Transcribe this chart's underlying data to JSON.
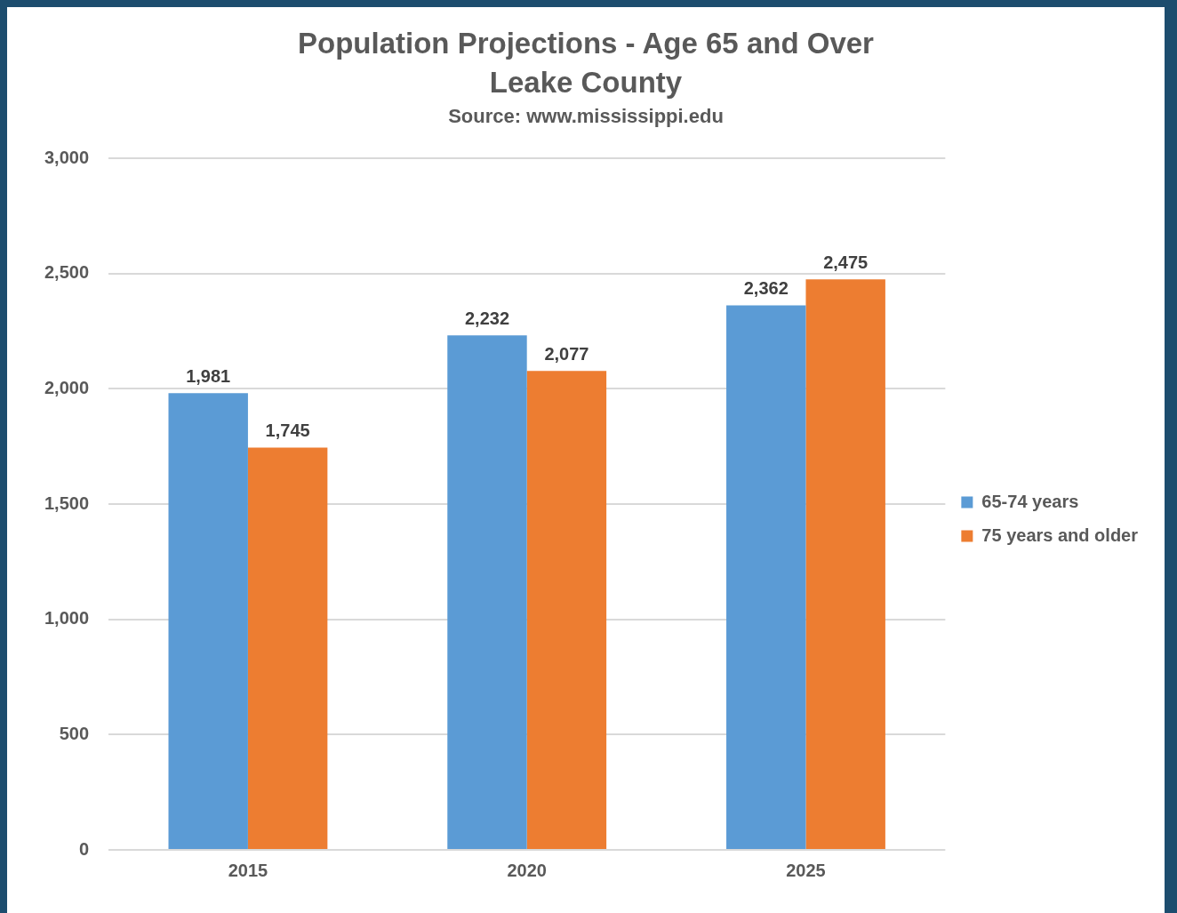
{
  "chart_data": {
    "type": "bar",
    "title": "Population Projections - Age 65 and Over",
    "subtitle": "Leake County",
    "annotations": [
      "Source: www.mississippi.edu"
    ],
    "categories": [
      "2015",
      "2020",
      "2025"
    ],
    "series": [
      {
        "name": "65-74 years",
        "color": "#5b9bd5",
        "values": [
          1981,
          2232,
          2362
        ],
        "value_labels": [
          "1,981",
          "2,232",
          "2,362"
        ]
      },
      {
        "name": "75 years and older",
        "color": "#ed7d31",
        "values": [
          1745,
          2077,
          2475
        ],
        "value_labels": [
          "1,745",
          "2,077",
          "2,475"
        ]
      }
    ],
    "ylim": [
      0,
      3000
    ],
    "yticks": [
      0,
      500,
      {
        "value": 1000,
        "label": "1,000"
      },
      {
        "value": 1500,
        "label": "1,500"
      },
      {
        "value": 2000,
        "label": "2,000"
      },
      {
        "value": 2500,
        "label": "2,500"
      },
      {
        "value": 3000,
        "label": "3,000"
      }
    ],
    "grid": "y",
    "legend": "right"
  }
}
